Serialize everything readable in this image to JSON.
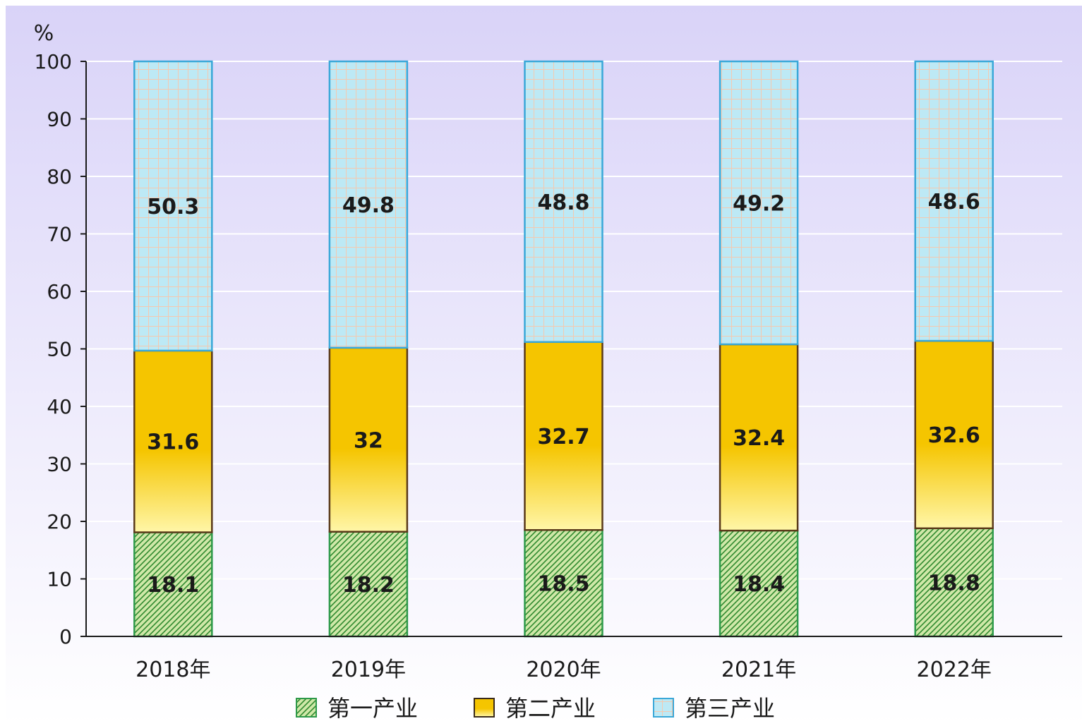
{
  "chart_data": {
    "type": "bar",
    "stacked": true,
    "categories": [
      "2018年",
      "2019年",
      "2020年",
      "2021年",
      "2022年"
    ],
    "series": [
      {
        "name": "第一产业",
        "values": [
          18.1,
          18.2,
          18.5,
          18.4,
          18.8
        ]
      },
      {
        "name": "第二产业",
        "values": [
          31.6,
          32,
          32.7,
          32.4,
          32.6
        ]
      },
      {
        "name": "第三产业",
        "values": [
          50.3,
          49.8,
          48.8,
          49.2,
          48.6
        ]
      }
    ],
    "ylabel": "%",
    "ylim": [
      0,
      100
    ],
    "yticks": [
      "0",
      "10",
      "20",
      "30",
      "40",
      "50",
      "60",
      "70",
      "80",
      "90",
      "100"
    ],
    "grid": true,
    "legend_position": "bottom",
    "colors": {
      "primary_fill": "#cfe8a8",
      "primary_hatch": "#2f8a2f",
      "primary_border": "#2e9a4a",
      "secondary_top": "#f5c500",
      "secondary_bottom": "#fff6a8",
      "secondary_border": "#5a3a1a",
      "tertiary_fill": "#bde9f5",
      "tertiary_grid": "#f4c9b0",
      "tertiary_border": "#3aa8d8",
      "background_top": "#d9d3f8",
      "background_bottom": "#ffffff"
    }
  }
}
